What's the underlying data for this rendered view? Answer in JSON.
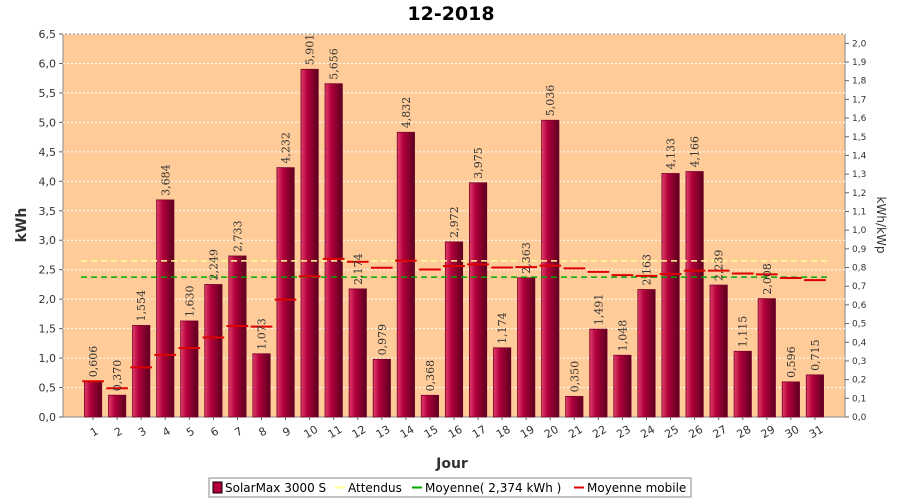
{
  "chart_data": {
    "type": "bar",
    "title": "12-2018",
    "xlabel": "Jour",
    "ylabel": "kWh",
    "y2label": "kWh/kWp",
    "ylim": [
      0,
      6.5
    ],
    "y2lim": [
      0,
      2.05
    ],
    "yticks": [
      "0,0",
      "0,5",
      "1,0",
      "1,5",
      "2,0",
      "2,5",
      "3,0",
      "3,5",
      "4,0",
      "4,5",
      "5,0",
      "5,5",
      "6,0",
      "6,5"
    ],
    "y2ticks": [
      "0,0",
      "0,1",
      "0,2",
      "0,3",
      "0,4",
      "0,5",
      "0,6",
      "0,7",
      "0,8",
      "0,9",
      "1,0",
      "1,1",
      "1,2",
      "1,3",
      "1,4",
      "1,5",
      "1,6",
      "1,7",
      "1,8",
      "1,9",
      "2,0"
    ],
    "categories": [
      "1",
      "2",
      "3",
      "4",
      "5",
      "6",
      "7",
      "8",
      "9",
      "10",
      "11",
      "12",
      "13",
      "14",
      "15",
      "16",
      "17",
      "18",
      "19",
      "20",
      "21",
      "22",
      "23",
      "24",
      "25",
      "26",
      "27",
      "28",
      "29",
      "30",
      "31"
    ],
    "series": [
      {
        "name": "SolarMax 3000 S",
        "kind": "bar",
        "color": "#b3003c",
        "values": [
          0.606,
          0.37,
          1.554,
          3.684,
          1.63,
          2.249,
          2.733,
          1.073,
          4.232,
          5.901,
          5.656,
          2.174,
          0.979,
          4.832,
          0.368,
          2.972,
          3.975,
          1.174,
          2.363,
          5.036,
          0.35,
          1.491,
          1.048,
          2.163,
          4.133,
          4.166,
          2.239,
          1.115,
          2.008,
          0.596,
          0.715
        ],
        "labels": [
          "0,606",
          "0,370",
          "1,554",
          "3,684",
          "1,630",
          "2,249",
          "2,733",
          "1,073",
          "4,232",
          "5,901",
          "5,656",
          "2,174",
          "0,979",
          "4,832",
          "0,368",
          "2,972",
          "3,975",
          "1,174",
          "2,363",
          "5,036",
          "0,350",
          "1,491",
          "1,048",
          "2,163",
          "4,133",
          "4,166",
          "2,239",
          "1,115",
          "2,008",
          "0,596",
          "0,715"
        ]
      },
      {
        "name": "Attendus",
        "kind": "hline",
        "color": "#ffff99",
        "value": 2.65
      },
      {
        "name": "Moyenne( 2,374 kWh )",
        "kind": "hline",
        "color": "#00aa00",
        "value": 2.374
      },
      {
        "name": "Moyenne mobile",
        "kind": "step",
        "color": "#dd0000",
        "values": [
          0.606,
          0.488,
          0.843,
          1.054,
          1.169,
          1.349,
          1.545,
          1.534,
          1.993,
          2.386,
          2.684,
          2.635,
          2.533,
          2.654,
          2.504,
          2.562,
          2.59,
          2.537,
          2.544,
          2.57,
          2.522,
          2.462,
          2.407,
          2.396,
          2.427,
          2.485,
          2.485,
          2.435,
          2.42,
          2.359,
          2.323
        ]
      }
    ],
    "legend_position": "bottom",
    "grid": true,
    "colors": {
      "plot_background": "#ffcc99",
      "grid": "#ffffff",
      "bar": "#b3003c",
      "bar_highlight": "#e0406a",
      "bar_shadow": "#5a001e"
    }
  }
}
